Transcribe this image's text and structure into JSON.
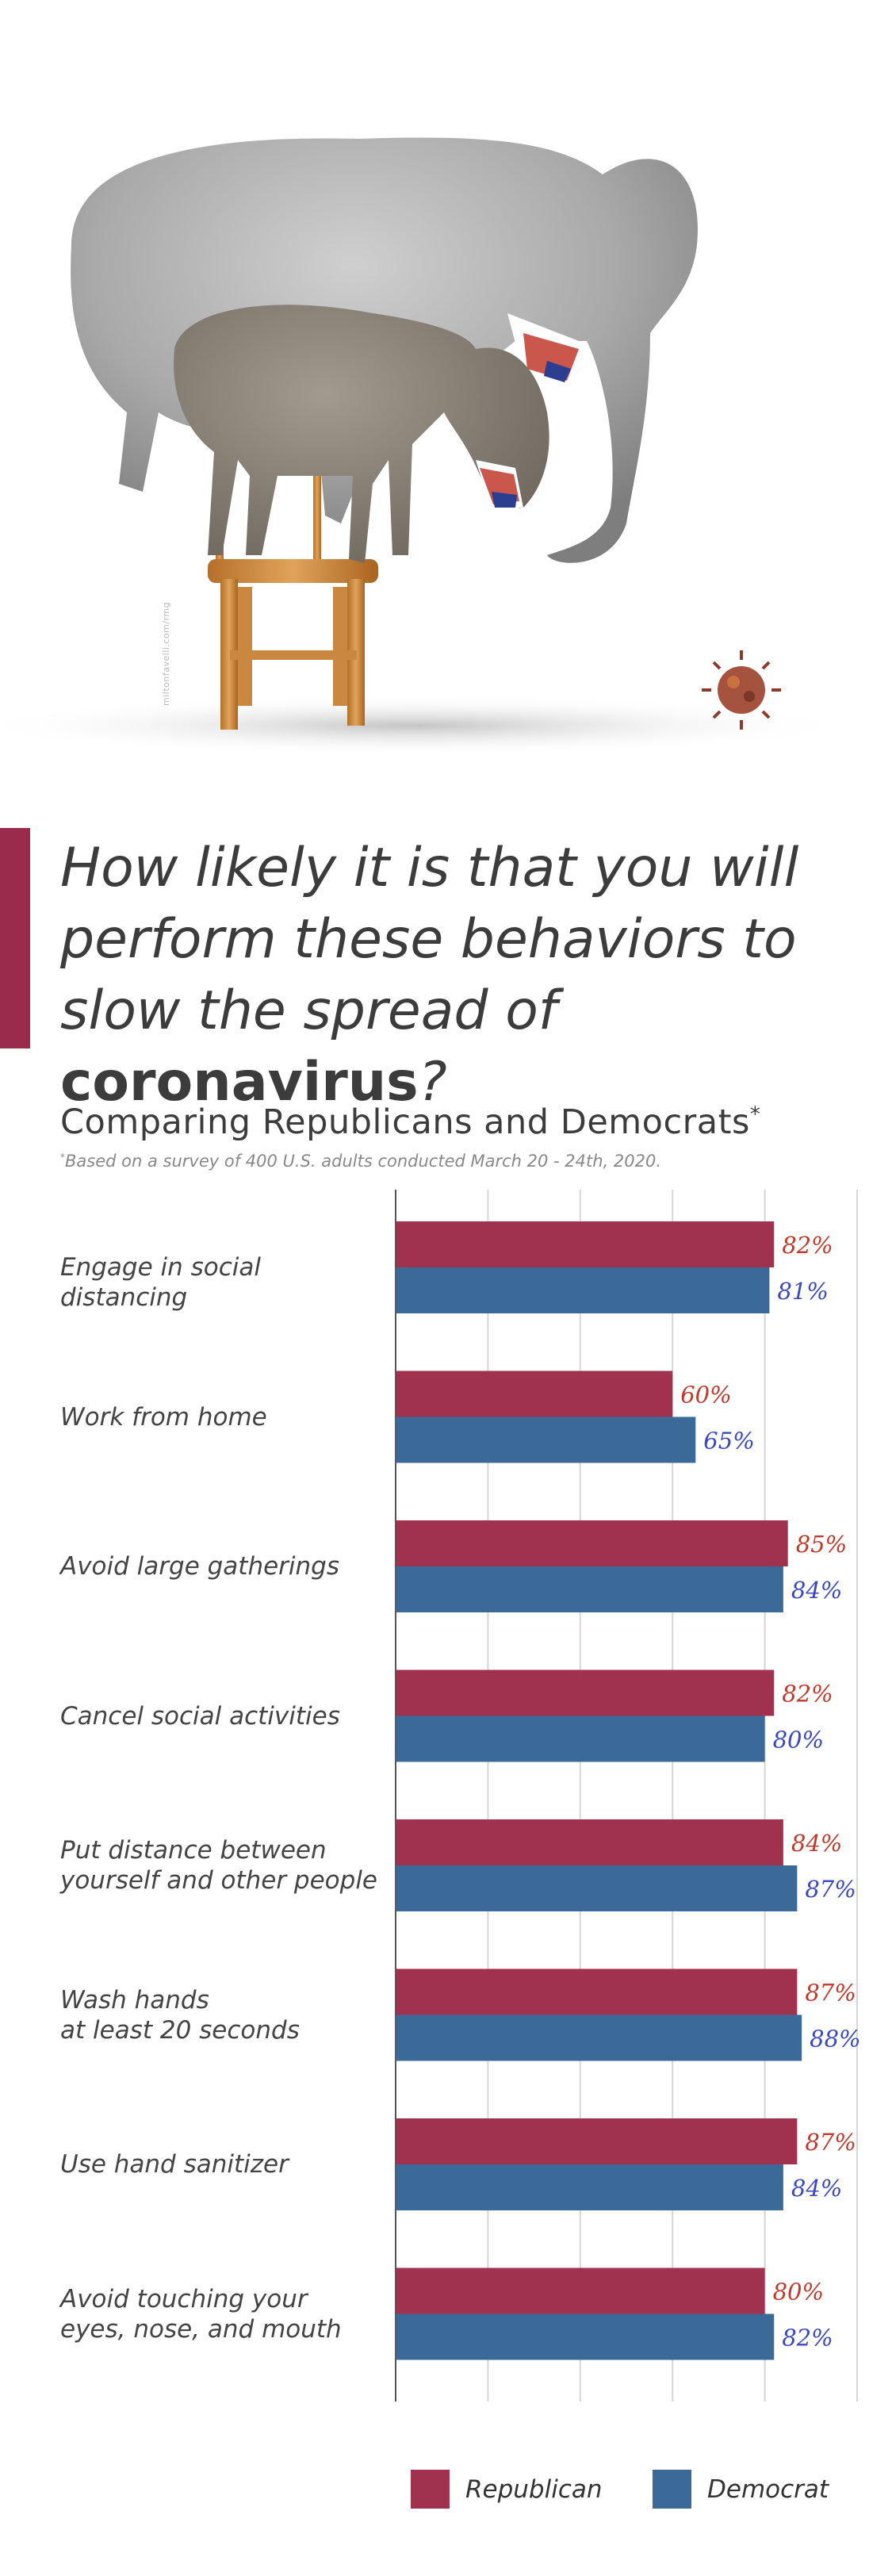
{
  "illustration": {
    "credit": "miltonfavelli.com/rmg"
  },
  "title": {
    "line1": "How likely it is that you will",
    "line2": "perform these behaviors to",
    "line3_prefix": "slow the spread of ",
    "line3_bold": "coronavirus",
    "line3_suffix": "?"
  },
  "subtitle": {
    "text": "Comparing Republicans and Democrats",
    "mark": "*"
  },
  "footnote": {
    "mark": "*",
    "text": "Based on a survey of 400 U.S. adults conducted March 20 - 24th, 2020."
  },
  "colors": {
    "republican": "#a0314f",
    "democrat": "#3b6a98",
    "republican_label": "#c0392b",
    "democrat_label": "#3a48c0",
    "accent": "#9a2b4d",
    "grid": "#d6d6d6",
    "axis": "#555555"
  },
  "legend": {
    "republican": "Republican",
    "democrat": "Democrat"
  },
  "chart_data": {
    "type": "bar",
    "orientation": "horizontal",
    "categories": [
      [
        "Engage in social distancing"
      ],
      [
        "Work from home"
      ],
      [
        "Avoid large gatherings"
      ],
      [
        "Cancel social activities"
      ],
      [
        "Put distance between",
        "yourself and other people"
      ],
      [
        "Wash hands",
        "at least 20 seconds"
      ],
      [
        "Use hand sanitizer"
      ],
      [
        "Avoid touching your",
        "eyes, nose, and mouth"
      ]
    ],
    "series": [
      {
        "name": "Republican",
        "values": [
          82,
          60,
          85,
          82,
          84,
          87,
          87,
          80
        ],
        "labels": [
          "82%",
          "60%",
          "85%",
          "82%",
          "84%",
          "87%",
          "87%",
          "80%"
        ]
      },
      {
        "name": "Democrat",
        "values": [
          81,
          65,
          84,
          80,
          87,
          88,
          84,
          82
        ],
        "labels": [
          "81%",
          "65%",
          "84%",
          "80%",
          "87%",
          "88%",
          "84%",
          "82%"
        ]
      }
    ],
    "xlim": [
      0,
      100
    ],
    "grid": true,
    "legend_position": "bottom"
  }
}
